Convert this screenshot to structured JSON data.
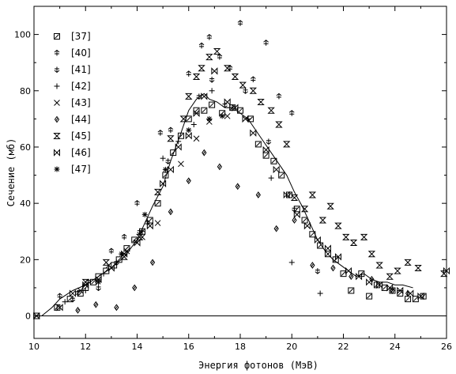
{
  "chart_data": {
    "type": "scatter",
    "title": "",
    "xlabel": "Энергия фотонов (МэВ)",
    "ylabel": "Сечение (мб)",
    "xlim": [
      10,
      26
    ],
    "ylim": [
      -8,
      110
    ],
    "xticks": [
      "10",
      "12",
      "14",
      "16",
      "18",
      "20",
      "22",
      "24",
      "26"
    ],
    "yticks": [
      "0",
      "20",
      "40",
      "60",
      "80",
      "100"
    ],
    "grid": false,
    "legend_position": "top-left",
    "series": [
      {
        "name": "[37]",
        "marker": "boxed-slash",
        "x": [
          10.1,
          10.9,
          11.4,
          11.8,
          12.0,
          12.3,
          12.5,
          12.8,
          13.1,
          13.3,
          13.6,
          13.9,
          14.2,
          14.5,
          14.8,
          15.1,
          15.4,
          15.7,
          16.0,
          16.3,
          16.6,
          16.9,
          17.3,
          17.7,
          18.0,
          18.4,
          18.7,
          19.0,
          19.3,
          19.6,
          19.9,
          20.2,
          20.5,
          20.8,
          21.1,
          21.4,
          21.7,
          22.0,
          22.3,
          22.7,
          23.0,
          23.3,
          23.6,
          23.9,
          24.2,
          24.5,
          24.8,
          25.1
        ],
        "values": [
          0,
          3,
          6,
          8,
          10,
          12,
          14,
          16,
          18,
          20,
          24,
          27,
          30,
          34,
          40,
          50,
          58,
          64,
          70,
          73,
          73,
          75,
          72,
          74,
          73,
          70,
          61,
          57,
          55,
          50,
          43,
          38,
          34,
          29,
          25,
          22,
          20,
          15,
          9,
          15,
          7,
          11,
          10,
          9,
          8,
          6,
          6,
          7
        ]
      },
      {
        "name": "[40]",
        "marker": "arrow-up",
        "x": [
          11.0,
          11.7,
          12.1,
          13.0,
          13.5,
          14.0,
          14.4,
          14.9,
          15.3,
          16.0,
          16.5,
          16.8,
          17.2,
          17.6,
          18.0,
          18.5,
          19.0,
          19.5,
          20.0
        ],
        "values": [
          7,
          8,
          12,
          23,
          28,
          40,
          33,
          65,
          66,
          86,
          96,
          99,
          92,
          88,
          104,
          84,
          97,
          78,
          72
        ]
      },
      {
        "name": "[41]",
        "marker": "arrow-down",
        "x": [
          11.5,
          12.5,
          13.2,
          14.1,
          15.2,
          16.4,
          16.9,
          17.4,
          18.2,
          19.1,
          20.1,
          21.0
        ],
        "values": [
          6,
          10,
          19,
          30,
          55,
          78,
          84,
          75,
          80,
          62,
          38,
          16
        ]
      },
      {
        "name": "[42]",
        "marker": "plus",
        "x": [
          11.2,
          12.0,
          12.7,
          13.4,
          14.2,
          15.0,
          15.6,
          16.2,
          16.9,
          17.6,
          18.3,
          19.2,
          20.0,
          21.1
        ],
        "values": [
          5,
          9,
          15,
          22,
          30,
          56,
          62,
          68,
          80,
          74,
          70,
          49,
          19,
          8
        ]
      },
      {
        "name": "[43]",
        "marker": "x",
        "x": [
          11.8,
          12.9,
          13.6,
          14.2,
          14.8,
          15.7,
          16.3,
          16.8,
          17.5
        ],
        "values": [
          9,
          18,
          23,
          28,
          33,
          54,
          63,
          69,
          71
        ]
      },
      {
        "name": "[44]",
        "marker": "diamond",
        "x": [
          11.7,
          12.4,
          13.2,
          13.9,
          14.6,
          15.3,
          16.0,
          16.6,
          17.2,
          17.9,
          18.7,
          19.4,
          20.1,
          20.8,
          21.6,
          22.3,
          23.1,
          23.9,
          24.5
        ],
        "values": [
          2,
          4,
          3,
          10,
          19,
          37,
          48,
          58,
          53,
          46,
          43,
          31,
          34,
          18,
          17,
          14,
          13,
          9,
          8
        ]
      },
      {
        "name": "[45]",
        "marker": "hourglass",
        "x": [
          12.0,
          12.8,
          13.5,
          14.1,
          14.8,
          15.3,
          15.8,
          16.0,
          16.3,
          16.5,
          16.8,
          17.1,
          17.5,
          17.8,
          18.1,
          18.5,
          18.8,
          19.2,
          19.5,
          19.8,
          20.1,
          20.5,
          20.8,
          21.2,
          21.5,
          21.8,
          22.1,
          22.4,
          22.8,
          23.1,
          23.4,
          23.8,
          24.1,
          24.5,
          24.9,
          25.9
        ],
        "values": [
          12,
          19,
          21,
          28,
          44,
          63,
          70,
          78,
          85,
          88,
          92,
          94,
          88,
          85,
          82,
          80,
          76,
          73,
          68,
          61,
          42,
          38,
          43,
          34,
          39,
          32,
          28,
          26,
          28,
          22,
          18,
          14,
          16,
          19,
          17,
          15
        ]
      },
      {
        "name": "[46]",
        "marker": "bowtie",
        "x": [
          10.1,
          11.0,
          11.5,
          12.0,
          12.5,
          13.0,
          13.5,
          14.0,
          14.5,
          15.0,
          15.3,
          15.6,
          16.0,
          16.3,
          16.6,
          17.0,
          17.5,
          17.8,
          18.2,
          18.5,
          19.0,
          19.4,
          19.8,
          20.2,
          20.6,
          21.0,
          21.4,
          21.8,
          22.2,
          22.6,
          23.0,
          23.4,
          23.8,
          24.2,
          24.6,
          25.0,
          26.0
        ],
        "values": [
          0,
          3,
          8,
          11,
          13,
          17,
          22,
          26,
          32,
          47,
          52,
          60,
          64,
          72,
          78,
          87,
          76,
          74,
          70,
          65,
          59,
          52,
          43,
          36,
          32,
          27,
          24,
          21,
          16,
          14,
          12,
          11,
          10,
          9,
          8,
          7,
          16
        ]
      },
      {
        "name": "[47]",
        "marker": "asterisk",
        "x": [
          12.5,
          13.4,
          14.3,
          15.1,
          16.0,
          16.8,
          17.3
        ],
        "values": [
          12,
          22,
          36,
          52,
          66,
          70,
          71
        ]
      },
      {
        "name": "",
        "marker": "line",
        "x": [
          10.3,
          10.7,
          11.0,
          11.5,
          12.0,
          12.5,
          13.0,
          13.5,
          14.0,
          14.3,
          14.6,
          15.0,
          15.3,
          15.7,
          16.0,
          16.3,
          16.6,
          16.8,
          17.1,
          17.4,
          17.7,
          18.0,
          18.3,
          18.6,
          18.9,
          19.2,
          19.5,
          19.8,
          20.1,
          20.4,
          20.7,
          21.0,
          21.3,
          21.6,
          21.9,
          22.2,
          22.5,
          22.8,
          23.1,
          23.4,
          23.7,
          24.0,
          24.3,
          24.7
        ],
        "values": [
          0,
          3,
          6,
          9,
          11,
          14,
          17,
          21,
          27,
          33,
          39,
          46,
          55,
          65,
          73,
          77,
          79,
          77,
          76,
          74,
          74,
          72,
          70,
          66,
          62,
          58,
          54,
          50,
          44,
          39,
          33,
          27,
          23,
          20,
          18,
          16,
          14,
          15,
          13,
          12,
          12,
          11,
          11,
          10
        ]
      }
    ]
  }
}
